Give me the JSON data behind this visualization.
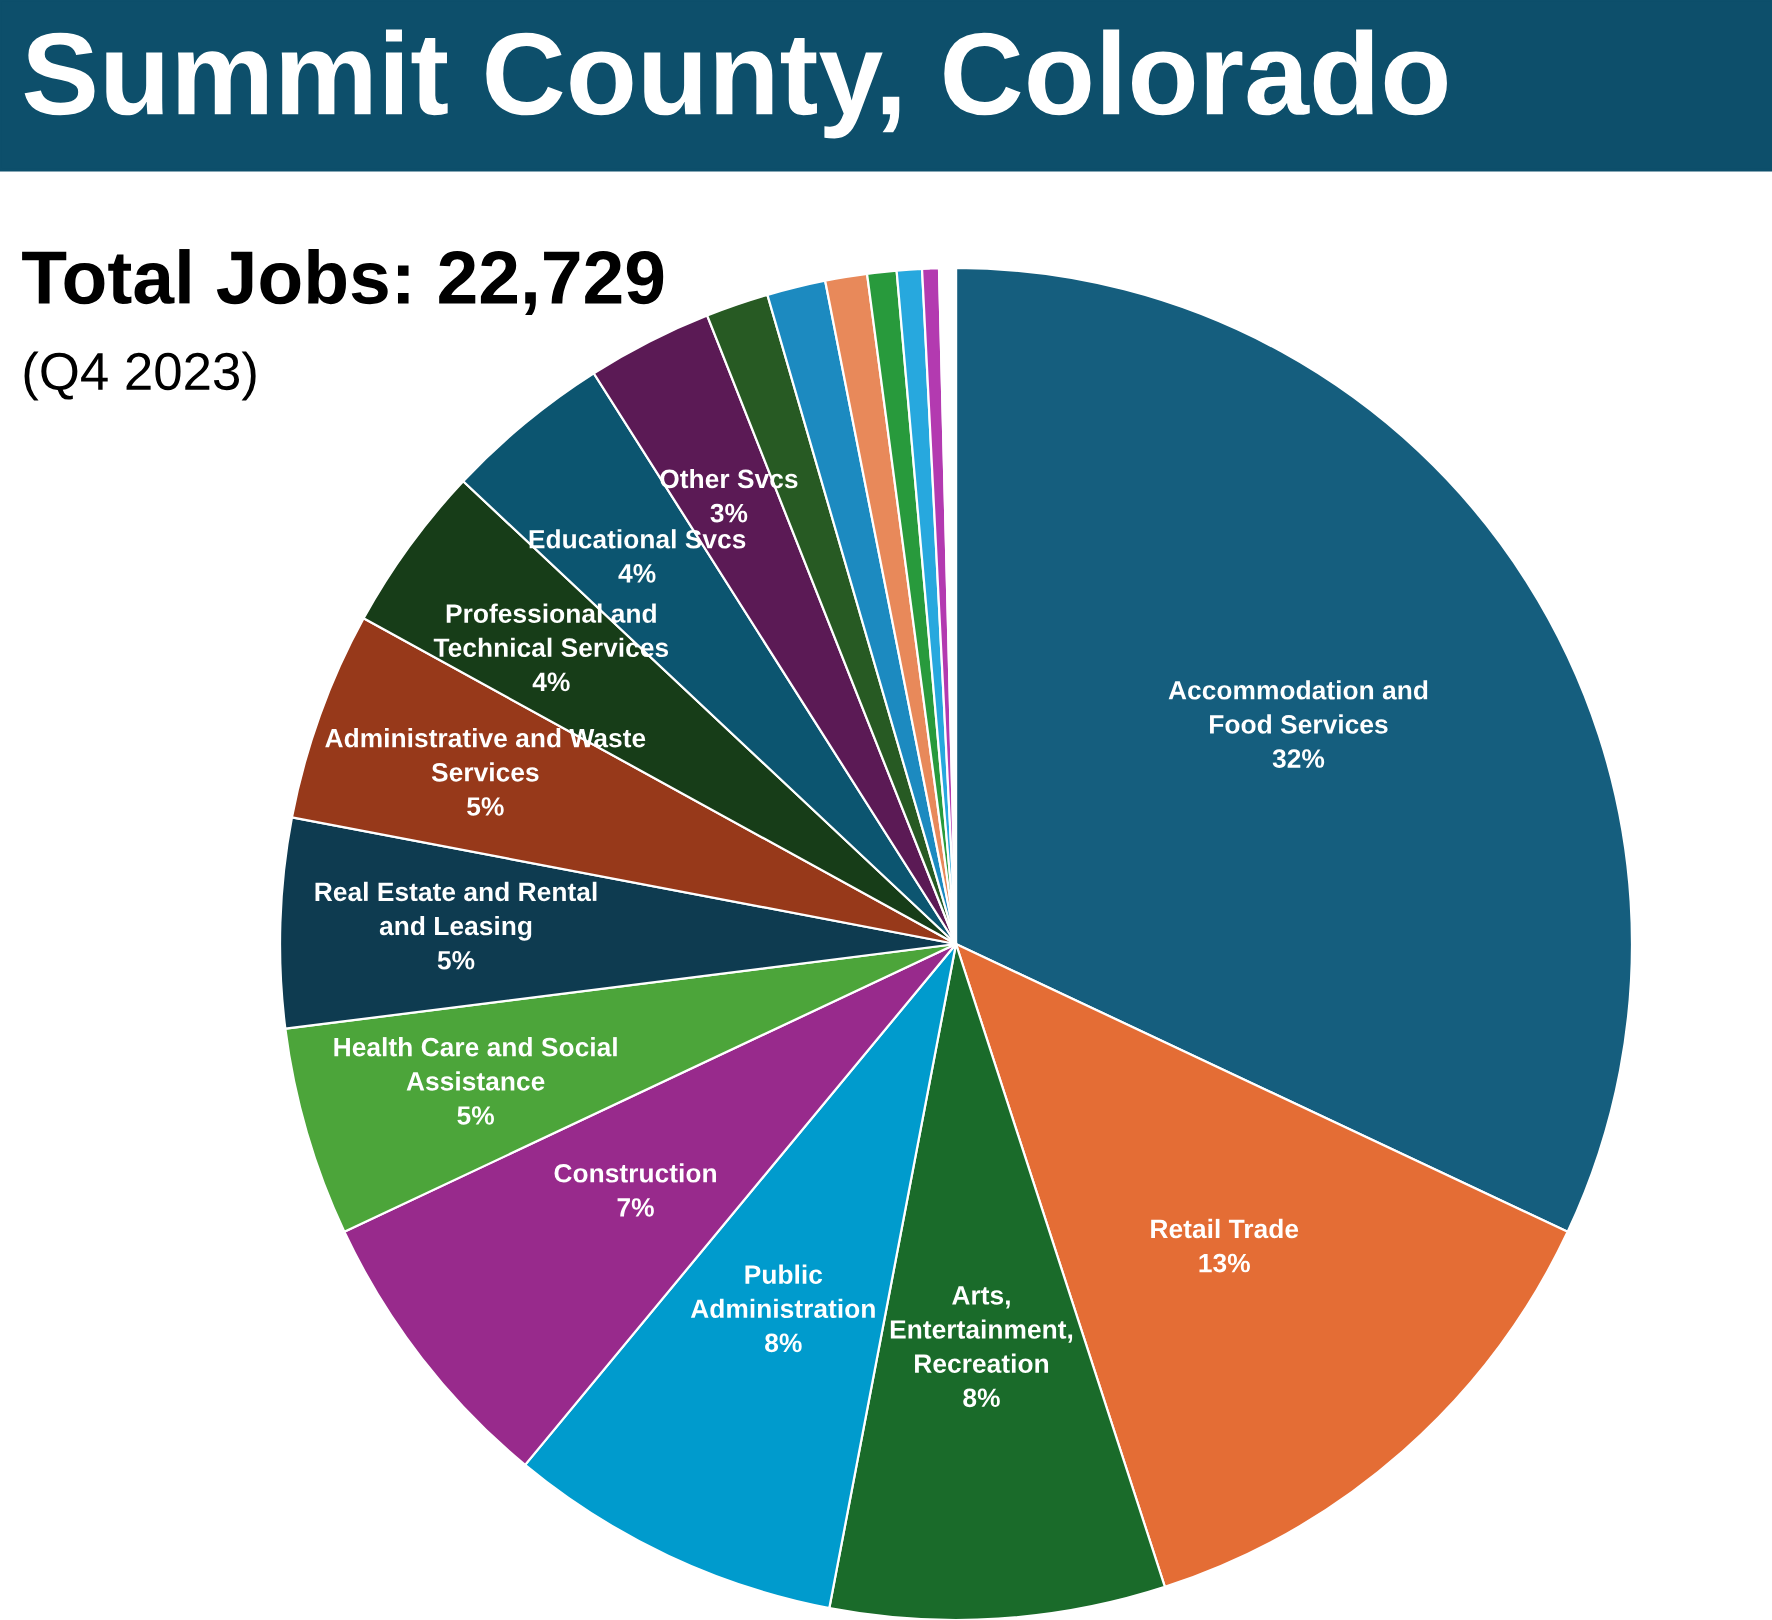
{
  "chart_data": {
    "type": "pie",
    "title": "Summit County, Colorado",
    "subtitle": "Total Jobs: 22,729",
    "annotations": [
      "(Q4 2023)"
    ],
    "categories": [
      "Accommodation and\nFood Services",
      "Retail Trade",
      "Arts,\nEntertainment,\nRecreation",
      "Public\nAdministration",
      "Construction",
      "Health Care and Social\nAssistance",
      "Real Estate and Rental\nand Leasing",
      "Administrative and Waste\nServices",
      "Professional and\nTechnical Services",
      "Educational Svcs",
      "Other Svcs",
      null,
      null,
      null,
      null,
      null,
      null,
      null
    ],
    "values": [
      32,
      13,
      8,
      8,
      7,
      5,
      5,
      5,
      4,
      4,
      3,
      1.5,
      1.4,
      1.0,
      0.7,
      0.6,
      0.4,
      0.4
    ],
    "value_labels": [
      "32%",
      "13%",
      "8%",
      "8%",
      "7%",
      "5%",
      "5%",
      "5%",
      "4%",
      "4%",
      "3%",
      null,
      null,
      null,
      null,
      null,
      null,
      null
    ],
    "colors": [
      "#155e7e",
      "#e46d35",
      "#1a6b2a",
      "#009bcd",
      "#982a8c",
      "#4ca53a",
      "#0e3b50",
      "#97391a",
      "#173d18",
      "#0c5570",
      "#5b1a55",
      "#275a23",
      "#1c8ac0",
      "#e8895a",
      "#289a3c",
      "#27a8de",
      "#b33ab0",
      "#ffffff"
    ]
  }
}
